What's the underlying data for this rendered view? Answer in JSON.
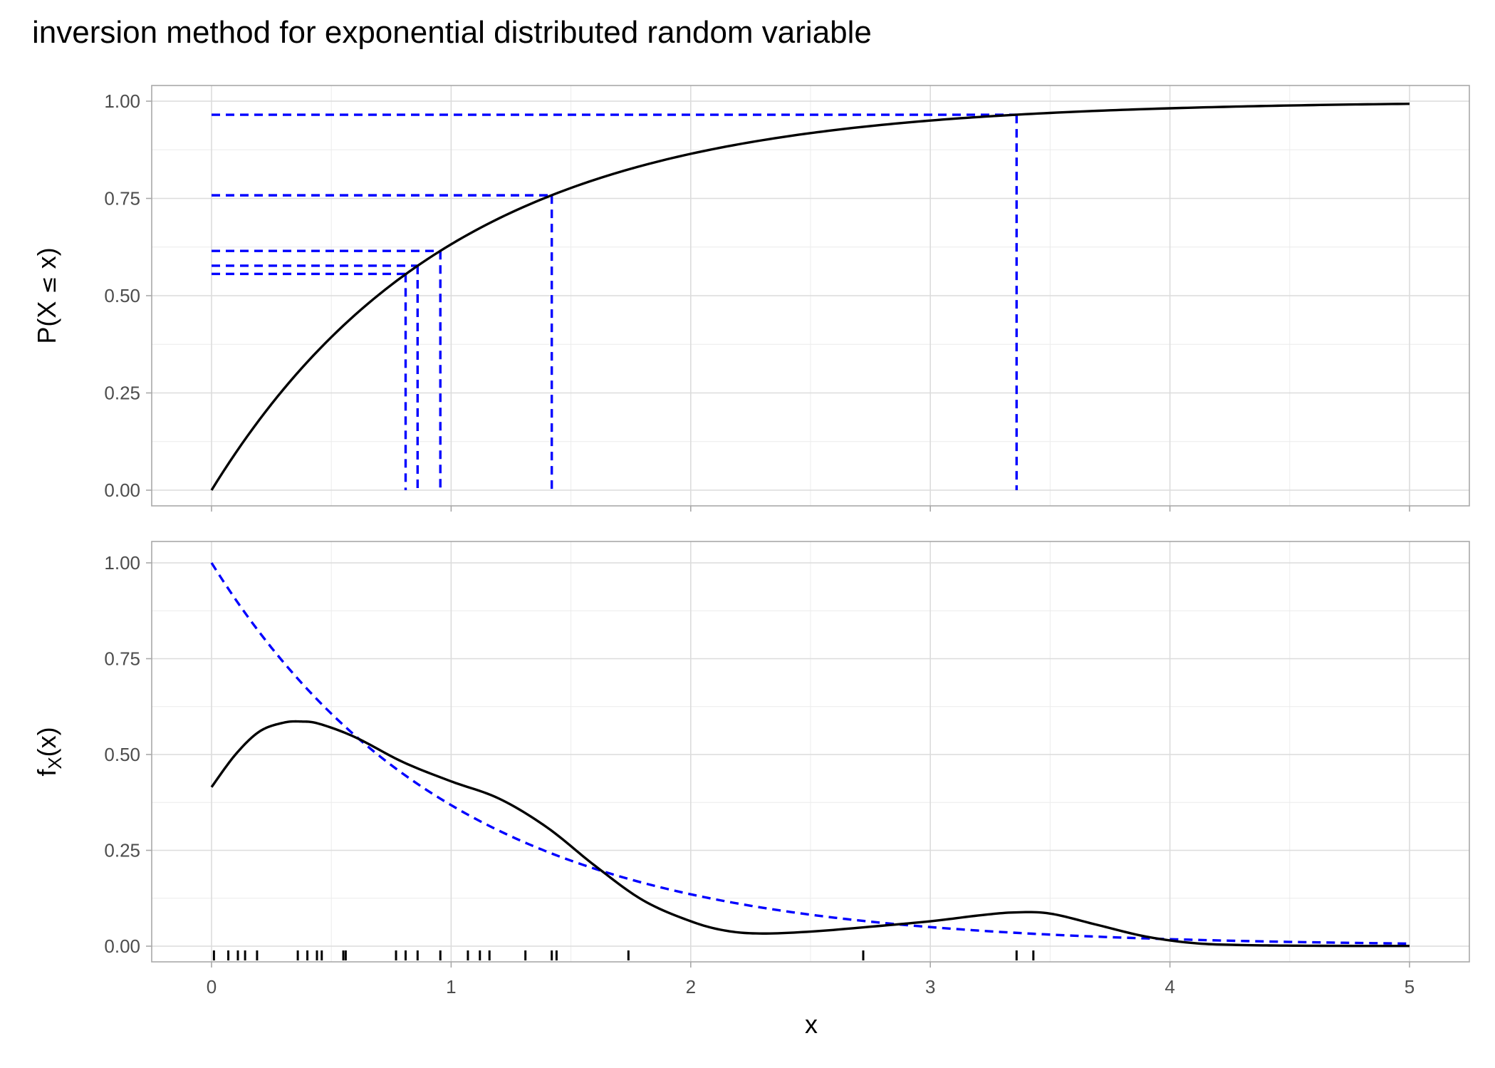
{
  "title": "inversion method for exponential distributed random variable",
  "colors": {
    "guide": "#0000ff",
    "curve": "#000000",
    "rug": "#000000"
  },
  "chart_data": [
    {
      "type": "line",
      "panel": "top",
      "xlabel": "",
      "ylabel_parts": {
        "before": "P(X ",
        "symbol": "≤",
        "after": " x)"
      },
      "xlim": [
        0,
        5
      ],
      "ylim": [
        0,
        1
      ],
      "x_ticks": [
        0,
        1,
        2,
        3,
        4,
        5
      ],
      "y_ticks": [
        0,
        0.25,
        0.5,
        0.75,
        1
      ],
      "y_tick_labels": [
        "0.00",
        "0.25",
        "0.50",
        "0.75",
        "1.00"
      ],
      "grid": true,
      "series": [
        {
          "kind": "exponential_cdf",
          "rate": 1,
          "x_range": [
            0,
            5
          ],
          "style": "solid",
          "color": "#000000"
        }
      ],
      "inversion_samples": [
        {
          "u": 0.556,
          "x": 0.81
        },
        {
          "u": 0.577,
          "x": 0.86
        },
        {
          "u": 0.615,
          "x": 0.955
        },
        {
          "u": 0.758,
          "x": 1.42
        },
        {
          "u": 0.965,
          "x": 3.36
        }
      ],
      "guide_style": "dashed",
      "guide_color": "#0000ff"
    },
    {
      "type": "line",
      "panel": "bottom",
      "xlabel": "x",
      "ylabel_parts": {
        "main": "f",
        "sub": "X",
        "after": "(x)"
      },
      "xlim": [
        0,
        5
      ],
      "ylim": [
        0,
        1
      ],
      "x_ticks": [
        0,
        1,
        2,
        3,
        4,
        5
      ],
      "x_tick_labels": [
        "0",
        "1",
        "2",
        "3",
        "4",
        "5"
      ],
      "y_ticks": [
        0,
        0.25,
        0.5,
        0.75,
        1
      ],
      "y_tick_labels": [
        "0.00",
        "0.25",
        "0.50",
        "0.75",
        "1.00"
      ],
      "grid": true,
      "series": [
        {
          "kind": "exponential_pdf",
          "rate": 1,
          "x_range": [
            0,
            5
          ],
          "style": "dashed",
          "color": "#0000ff"
        },
        {
          "kind": "kernel_density_estimate",
          "style": "solid",
          "color": "#000000",
          "x": [
            0,
            0.1,
            0.2,
            0.3,
            0.375,
            0.45,
            0.6,
            0.8,
            1.0,
            1.2,
            1.4,
            1.6,
            1.8,
            2.0,
            2.15,
            2.3,
            2.5,
            2.7,
            3.0,
            3.2,
            3.35,
            3.5,
            3.7,
            3.9,
            4.1,
            4.3,
            4.6,
            5.0
          ],
          "y": [
            0.415,
            0.5,
            0.56,
            0.583,
            0.586,
            0.58,
            0.545,
            0.48,
            0.43,
            0.385,
            0.31,
            0.21,
            0.12,
            0.065,
            0.04,
            0.033,
            0.038,
            0.048,
            0.065,
            0.08,
            0.088,
            0.085,
            0.055,
            0.025,
            0.008,
            0.003,
            0.001,
            0.0005
          ]
        }
      ],
      "rug": [
        0.01,
        0.07,
        0.11,
        0.14,
        0.19,
        0.36,
        0.4,
        0.44,
        0.46,
        0.55,
        0.56,
        0.77,
        0.81,
        0.86,
        0.955,
        1.07,
        1.12,
        1.16,
        1.31,
        1.42,
        1.44,
        1.74,
        2.72,
        3.36,
        3.43
      ]
    }
  ]
}
